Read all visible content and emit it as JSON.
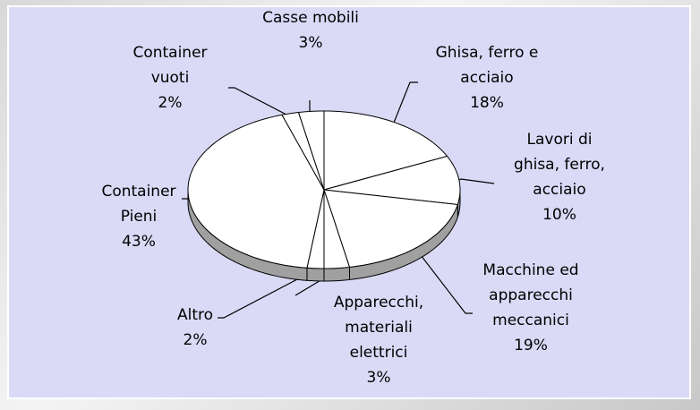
{
  "chart_data": {
    "type": "pie3d",
    "categories": [
      "Ghisa, ferro e acciaio",
      "Lavori di ghisa, ferro, acciaio",
      "Macchine ed apparecchi meccanici",
      "Apparecchi, materiali elettrici",
      "Altro",
      "Container Pieni",
      "Container vuoti",
      "Casse mobili"
    ],
    "values": [
      18,
      10,
      19,
      3,
      2,
      43,
      2,
      3
    ],
    "value_labels": [
      "18%",
      "10%",
      "19%",
      "3%",
      "2%",
      "43%",
      "2%",
      "3%"
    ],
    "color": "#ffffff"
  }
}
